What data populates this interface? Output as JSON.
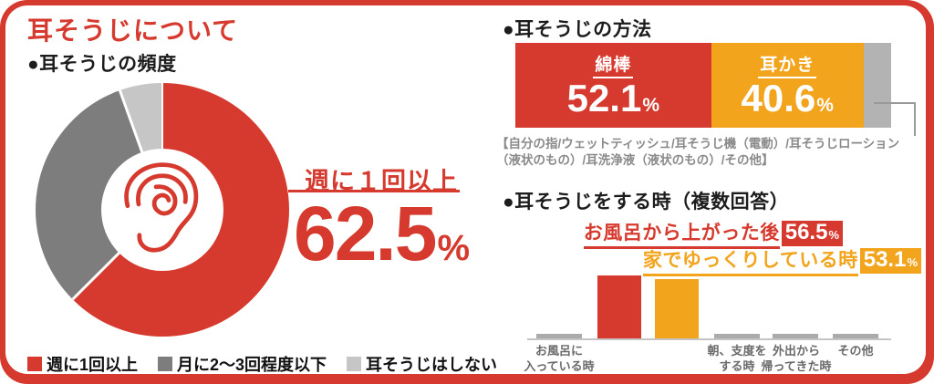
{
  "card": {
    "title": "耳そうじについて",
    "colors": {
      "red": "#d63a2e",
      "orange": "#f2a41c",
      "dark_gray": "#7d7d7d",
      "light_gray": "#c6c6c6",
      "bar_tail_gray": "#b3b3b3",
      "small_bar_gray": "#ababab"
    }
  },
  "frequency_section": {
    "heading": "●耳そうじの頻度",
    "callout_label": "週に１回以上",
    "callout_value": "62.5",
    "callout_unit": "%",
    "legend": [
      {
        "label": "週に1回以上",
        "color": "#d63a2e"
      },
      {
        "label": "月に2〜3回程度以下",
        "color": "#7d7d7d"
      },
      {
        "label": "耳そうじはしない",
        "color": "#c6c6c6"
      }
    ]
  },
  "method_section": {
    "heading": "●耳そうじの方法",
    "segments": [
      {
        "label": "綿棒",
        "value": "52.1",
        "unit": "%"
      },
      {
        "label": "耳かき",
        "value": "40.6",
        "unit": "%"
      }
    ],
    "others_note": "【自分の指/ウェットティッシュ/耳そうじ機（電動）/耳そうじローション（液状のもの）/耳洗浄液（液状のもの）/その他】"
  },
  "timing_section": {
    "heading": "●耳そうじをする時（複数回答）",
    "callouts": [
      {
        "label": "お風呂から上がった後",
        "value": "56.5",
        "unit": "%"
      },
      {
        "label": "家でゆっくりしている時",
        "value": "53.1",
        "unit": "%"
      }
    ],
    "axis_labels": [
      "お風呂に\n入っている時",
      "朝、支度を\nする時",
      "外出から\n帰ってきた時",
      "その他"
    ]
  },
  "chart_data": [
    {
      "type": "pie",
      "title": "耳そうじの頻度",
      "donut": true,
      "start_angle_deg": 0,
      "labels": [
        "週に1回以上",
        "月に2〜3回程度以下",
        "耳そうじはしない"
      ],
      "values": [
        62.5,
        32,
        5.5
      ],
      "colors": [
        "#d63a2e",
        "#7d7d7d",
        "#c6c6c6"
      ],
      "legend_position": "bottom"
    },
    {
      "type": "bar",
      "orientation": "horizontal-stacked",
      "title": "耳そうじの方法",
      "categories": [
        "綿棒",
        "耳かき",
        "その他"
      ],
      "values": [
        52.1,
        40.6,
        7.3
      ],
      "colors": [
        "#d63a2e",
        "#f2a41c",
        "#b3b3b3"
      ],
      "unit": "%",
      "xlim": [
        0,
        100
      ]
    },
    {
      "type": "bar",
      "title": "耳そうじをする時（複数回答）",
      "categories": [
        "お風呂に入っている時",
        "お風呂から上がった後",
        "家でゆっくりしている時",
        "朝、支度をする時",
        "外出から帰ってきた時",
        "その他"
      ],
      "values": [
        5,
        56.5,
        53.1,
        5,
        5,
        5
      ],
      "colors": [
        "#ababab",
        "#d63a2e",
        "#f2a41c",
        "#ababab",
        "#ababab",
        "#ababab"
      ],
      "unit": "%",
      "ylim": [
        0,
        60
      ],
      "grid": false
    }
  ]
}
